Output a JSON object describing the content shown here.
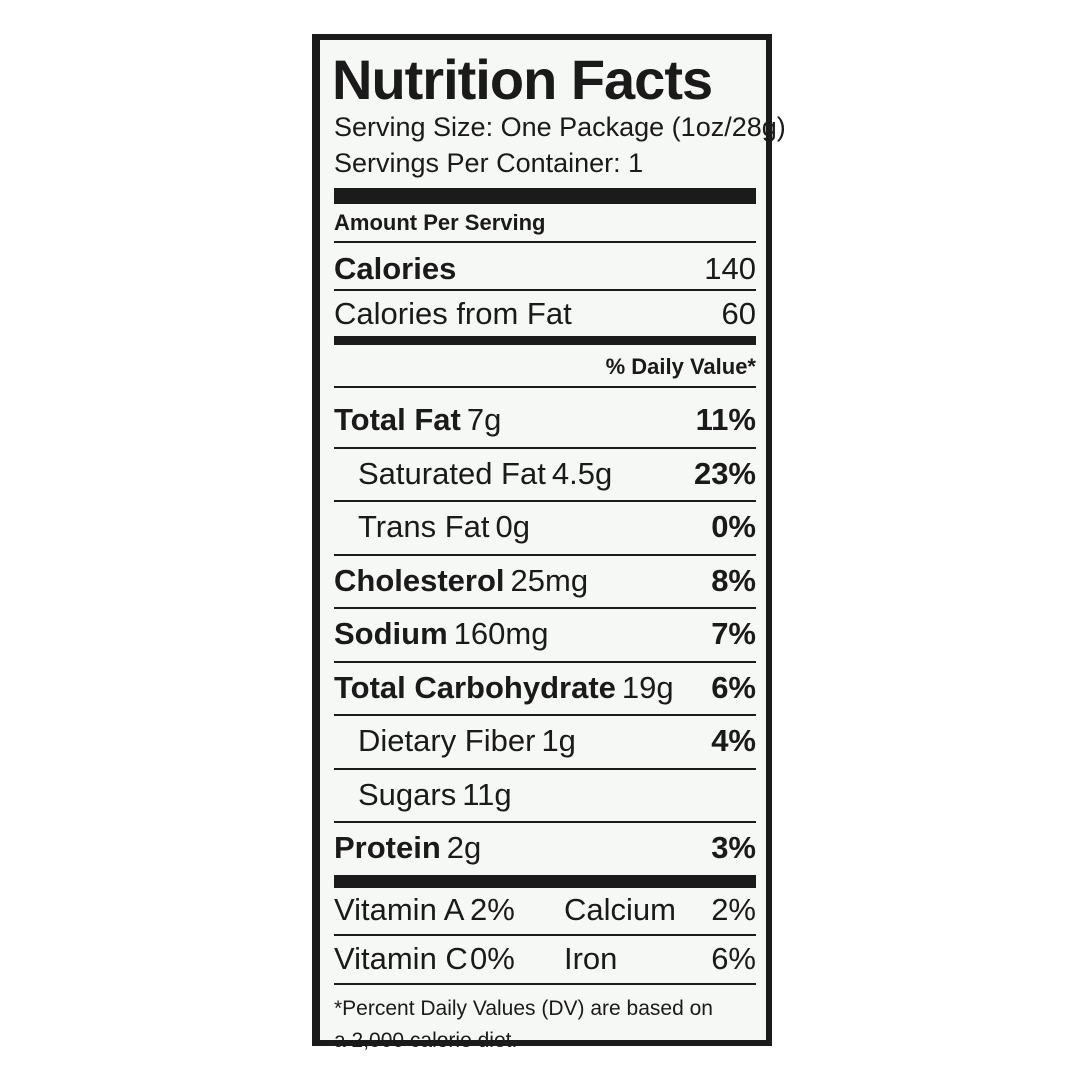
{
  "title": "Nutrition Facts",
  "serving_size": "Serving Size: One Package (1oz/28g)",
  "servings_per_container": "Servings Per Container: 1",
  "amount_per_serving": "Amount Per Serving",
  "calories": {
    "label": "Calories",
    "value": "140"
  },
  "calories_from_fat": {
    "label": "Calories from Fat",
    "value": "60"
  },
  "daily_value_header": "% Daily Value*",
  "nutrients": [
    {
      "name": "Total Fat",
      "amount": "7g",
      "dv": "11%",
      "bold": true,
      "indent": false
    },
    {
      "name": "Saturated Fat",
      "amount": "4.5g",
      "dv": "23%",
      "bold": false,
      "indent": true
    },
    {
      "name": "Trans Fat",
      "amount": "0g",
      "dv": "0%",
      "bold": false,
      "indent": true
    },
    {
      "name": "Cholesterol",
      "amount": "25mg",
      "dv": "8%",
      "bold": true,
      "indent": false
    },
    {
      "name": "Sodium",
      "amount": "160mg",
      "dv": "7%",
      "bold": true,
      "indent": false
    },
    {
      "name": "Total Carbohydrate",
      "amount": "19g",
      "dv": "6%",
      "bold": true,
      "indent": false
    },
    {
      "name": "Dietary Fiber",
      "amount": "1g",
      "dv": "4%",
      "bold": false,
      "indent": true
    },
    {
      "name": "Sugars",
      "amount": "11g",
      "bold": false,
      "indent": true
    },
    {
      "name": "Protein",
      "amount": "2g",
      "dv": "3%",
      "bold": true,
      "indent": false
    }
  ],
  "vitamins": [
    [
      {
        "name": "Vitamin A",
        "dv": "2%"
      },
      {
        "name": "Calcium",
        "dv": "2%"
      }
    ],
    [
      {
        "name": "Vitamin C",
        "dv": "0%"
      },
      {
        "name": "Iron",
        "dv": "6%"
      }
    ]
  ],
  "footnote": [
    "*Percent Daily Values (DV) are based on",
    "a 2,000 calorie diet."
  ]
}
